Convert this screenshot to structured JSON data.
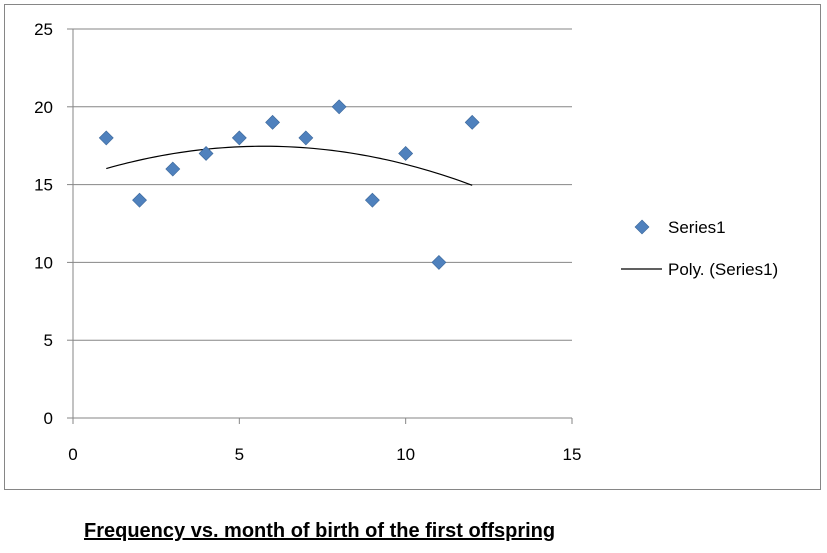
{
  "chart_data": {
    "type": "scatter",
    "title": "",
    "xlabel": "",
    "ylabel": "",
    "xlim": [
      0,
      15
    ],
    "ylim": [
      0,
      25
    ],
    "xticks": [
      0,
      5,
      10,
      15
    ],
    "yticks": [
      0,
      5,
      10,
      15,
      20,
      25
    ],
    "grid": "horizontal",
    "legend_position": "right",
    "series": [
      {
        "name": "Series1",
        "marker": "diamond",
        "color": "#4F81BD",
        "x": [
          1,
          2,
          3,
          4,
          5,
          6,
          7,
          8,
          9,
          10,
          11,
          12
        ],
        "y": [
          18,
          14,
          16,
          17,
          18,
          19,
          18,
          20,
          14,
          17,
          10,
          19
        ]
      }
    ],
    "trendline": {
      "name": "Poly. (Series1)",
      "type": "polynomial",
      "order": 2,
      "color": "#000000",
      "x_range": [
        1,
        12
      ]
    }
  },
  "caption": "Frequency vs. month of birth of the first offspring"
}
